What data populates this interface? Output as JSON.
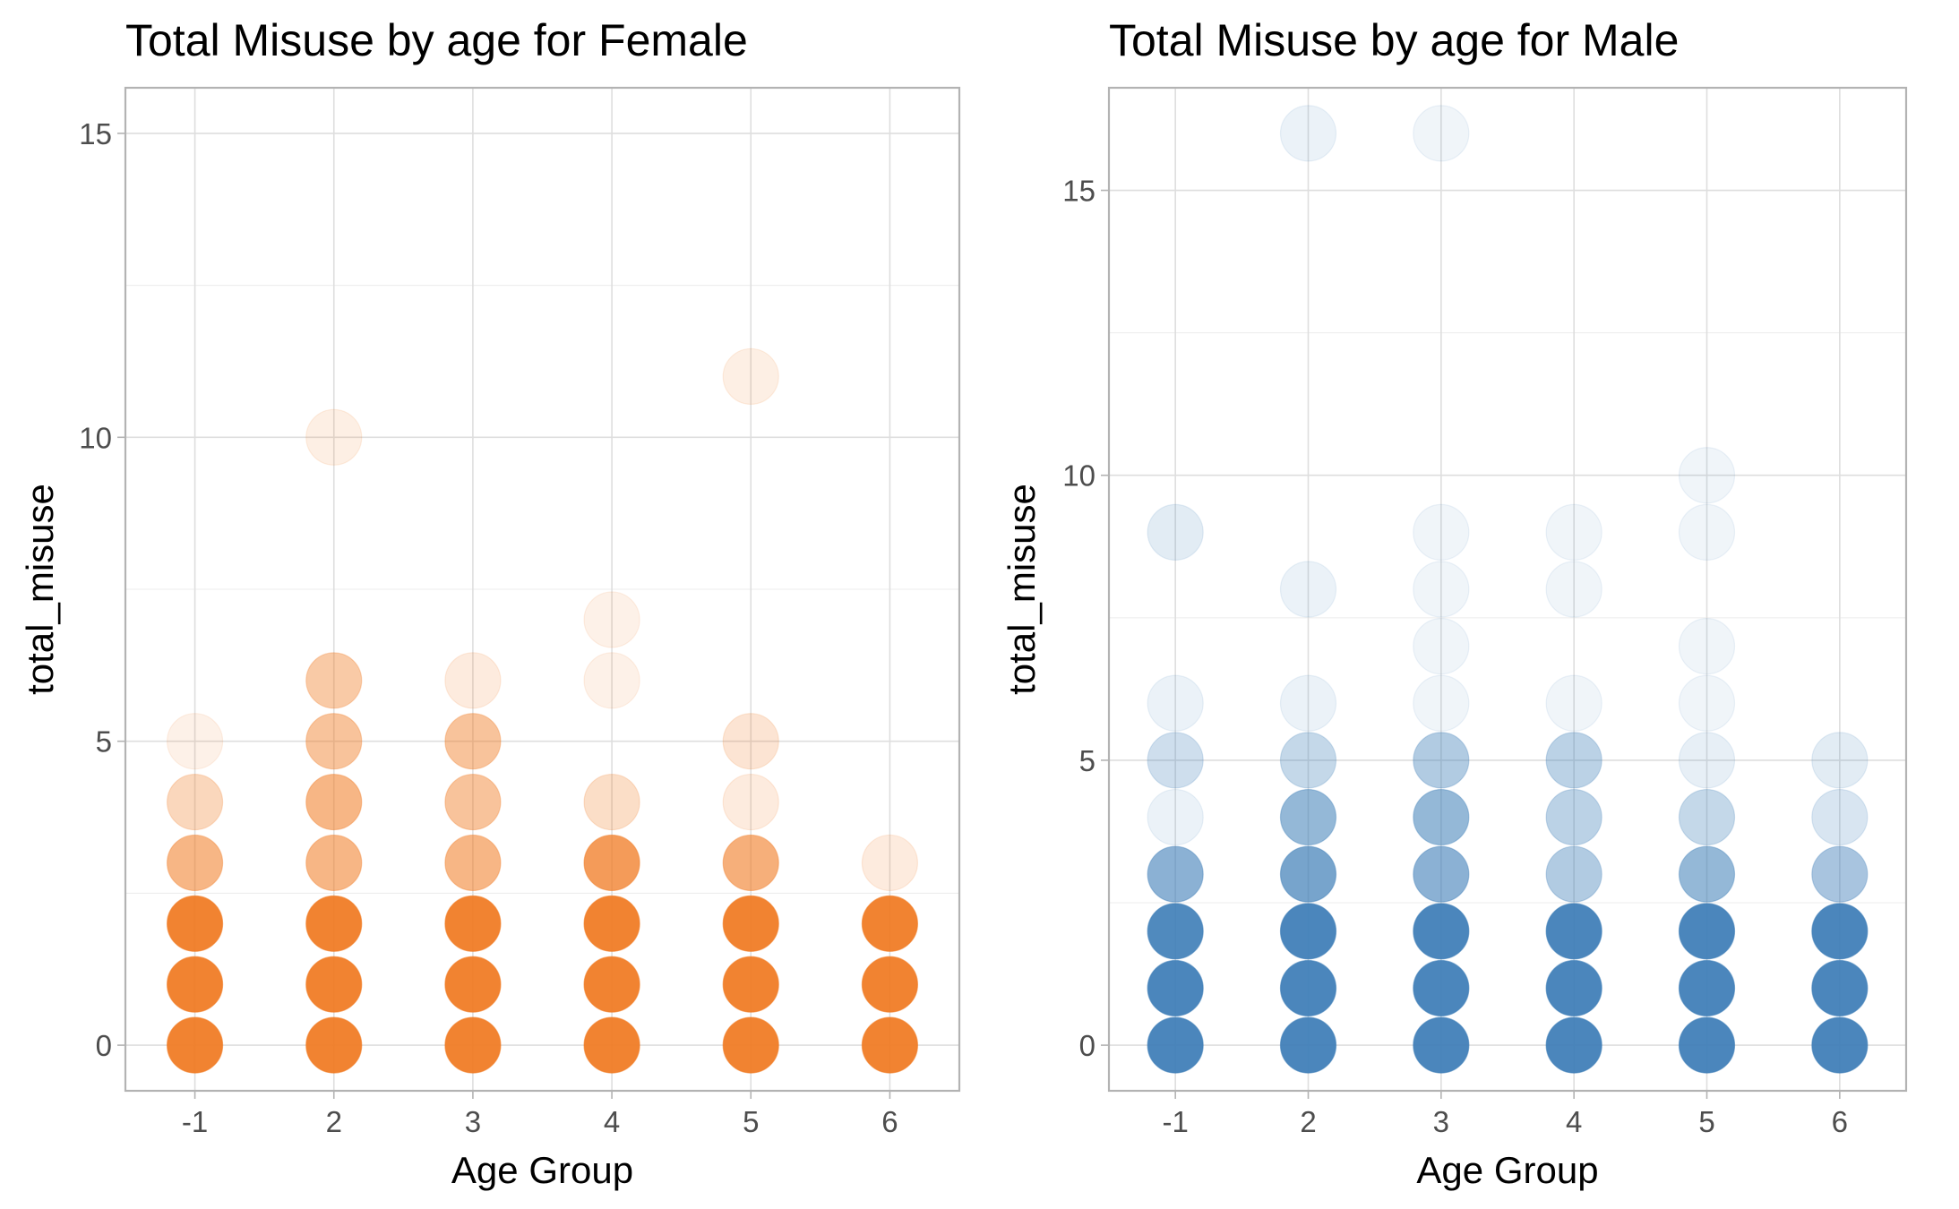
{
  "chart_data": [
    {
      "type": "scatter",
      "title": "Total Misuse by age for Female",
      "xlabel": "Age Group",
      "ylabel": "total_misuse",
      "categories": [
        "-1",
        "2",
        "3",
        "4",
        "5",
        "6"
      ],
      "yticks": [
        0,
        5,
        10,
        15
      ],
      "ylim": [
        -0.75,
        15.75
      ],
      "grid": true,
      "color": "#F07A21",
      "points": [
        {
          "x": "-1",
          "y": 0,
          "opacity": 0.93
        },
        {
          "x": "-1",
          "y": 1,
          "opacity": 0.93
        },
        {
          "x": "-1",
          "y": 2,
          "opacity": 0.93
        },
        {
          "x": "-1",
          "y": 3,
          "opacity": 0.55
        },
        {
          "x": "-1",
          "y": 4,
          "opacity": 0.3
        },
        {
          "x": "-1",
          "y": 5,
          "opacity": 0.1
        },
        {
          "x": "2",
          "y": 0,
          "opacity": 0.93
        },
        {
          "x": "2",
          "y": 1,
          "opacity": 0.93
        },
        {
          "x": "2",
          "y": 2,
          "opacity": 0.93
        },
        {
          "x": "2",
          "y": 3,
          "opacity": 0.55
        },
        {
          "x": "2",
          "y": 4,
          "opacity": 0.55
        },
        {
          "x": "2",
          "y": 5,
          "opacity": 0.45
        },
        {
          "x": "2",
          "y": 6,
          "opacity": 0.4
        },
        {
          "x": "2",
          "y": 10,
          "opacity": 0.12
        },
        {
          "x": "3",
          "y": 0,
          "opacity": 0.93
        },
        {
          "x": "3",
          "y": 1,
          "opacity": 0.93
        },
        {
          "x": "3",
          "y": 2,
          "opacity": 0.93
        },
        {
          "x": "3",
          "y": 3,
          "opacity": 0.55
        },
        {
          "x": "3",
          "y": 4,
          "opacity": 0.45
        },
        {
          "x": "3",
          "y": 5,
          "opacity": 0.45
        },
        {
          "x": "3",
          "y": 6,
          "opacity": 0.15
        },
        {
          "x": "4",
          "y": 0,
          "opacity": 0.93
        },
        {
          "x": "4",
          "y": 1,
          "opacity": 0.93
        },
        {
          "x": "4",
          "y": 2,
          "opacity": 0.93
        },
        {
          "x": "4",
          "y": 3,
          "opacity": 0.75
        },
        {
          "x": "4",
          "y": 4,
          "opacity": 0.25
        },
        {
          "x": "4",
          "y": 6,
          "opacity": 0.1
        },
        {
          "x": "4",
          "y": 7,
          "opacity": 0.1
        },
        {
          "x": "5",
          "y": 0,
          "opacity": 0.93
        },
        {
          "x": "5",
          "y": 1,
          "opacity": 0.93
        },
        {
          "x": "5",
          "y": 2,
          "opacity": 0.93
        },
        {
          "x": "5",
          "y": 3,
          "opacity": 0.6
        },
        {
          "x": "5",
          "y": 4,
          "opacity": 0.15
        },
        {
          "x": "5",
          "y": 5,
          "opacity": 0.2
        },
        {
          "x": "5",
          "y": 11,
          "opacity": 0.12
        },
        {
          "x": "6",
          "y": 0,
          "opacity": 0.93
        },
        {
          "x": "6",
          "y": 1,
          "opacity": 0.93
        },
        {
          "x": "6",
          "y": 2,
          "opacity": 0.93
        },
        {
          "x": "6",
          "y": 3,
          "opacity": 0.15
        }
      ]
    },
    {
      "type": "scatter",
      "title": "Total Misuse by age for Male",
      "xlabel": "Age Group",
      "ylabel": "total_misuse",
      "categories": [
        "-1",
        "2",
        "3",
        "4",
        "5",
        "6"
      ],
      "yticks": [
        0,
        5,
        10,
        15
      ],
      "ylim": [
        -0.8,
        16.8
      ],
      "grid": true,
      "color": "#3D7DB7",
      "points": [
        {
          "x": "-1",
          "y": 0,
          "opacity": 0.93
        },
        {
          "x": "-1",
          "y": 1,
          "opacity": 0.93
        },
        {
          "x": "-1",
          "y": 2,
          "opacity": 0.9
        },
        {
          "x": "-1",
          "y": 3,
          "opacity": 0.6
        },
        {
          "x": "-1",
          "y": 4,
          "opacity": 0.1
        },
        {
          "x": "-1",
          "y": 5,
          "opacity": 0.25
        },
        {
          "x": "-1",
          "y": 6,
          "opacity": 0.1
        },
        {
          "x": "-1",
          "y": 9,
          "opacity": 0.15
        },
        {
          "x": "2",
          "y": 0,
          "opacity": 0.93
        },
        {
          "x": "2",
          "y": 1,
          "opacity": 0.93
        },
        {
          "x": "2",
          "y": 2,
          "opacity": 0.93
        },
        {
          "x": "2",
          "y": 3,
          "opacity": 0.7
        },
        {
          "x": "2",
          "y": 4,
          "opacity": 0.55
        },
        {
          "x": "2",
          "y": 5,
          "opacity": 0.3
        },
        {
          "x": "2",
          "y": 6,
          "opacity": 0.1
        },
        {
          "x": "2",
          "y": 8,
          "opacity": 0.1
        },
        {
          "x": "2",
          "y": 16,
          "opacity": 0.1
        },
        {
          "x": "3",
          "y": 0,
          "opacity": 0.93
        },
        {
          "x": "3",
          "y": 1,
          "opacity": 0.93
        },
        {
          "x": "3",
          "y": 2,
          "opacity": 0.93
        },
        {
          "x": "3",
          "y": 3,
          "opacity": 0.6
        },
        {
          "x": "3",
          "y": 4,
          "opacity": 0.55
        },
        {
          "x": "3",
          "y": 5,
          "opacity": 0.4
        },
        {
          "x": "3",
          "y": 6,
          "opacity": 0.08
        },
        {
          "x": "3",
          "y": 7,
          "opacity": 0.08
        },
        {
          "x": "3",
          "y": 8,
          "opacity": 0.08
        },
        {
          "x": "3",
          "y": 9,
          "opacity": 0.08
        },
        {
          "x": "3",
          "y": 16,
          "opacity": 0.08
        },
        {
          "x": "4",
          "y": 0,
          "opacity": 0.93
        },
        {
          "x": "4",
          "y": 1,
          "opacity": 0.93
        },
        {
          "x": "4",
          "y": 2,
          "opacity": 0.93
        },
        {
          "x": "4",
          "y": 3,
          "opacity": 0.4
        },
        {
          "x": "4",
          "y": 4,
          "opacity": 0.35
        },
        {
          "x": "4",
          "y": 5,
          "opacity": 0.35
        },
        {
          "x": "4",
          "y": 6,
          "opacity": 0.08
        },
        {
          "x": "4",
          "y": 8,
          "opacity": 0.08
        },
        {
          "x": "4",
          "y": 9,
          "opacity": 0.08
        },
        {
          "x": "5",
          "y": 0,
          "opacity": 0.93
        },
        {
          "x": "5",
          "y": 1,
          "opacity": 0.93
        },
        {
          "x": "5",
          "y": 2,
          "opacity": 0.93
        },
        {
          "x": "5",
          "y": 3,
          "opacity": 0.55
        },
        {
          "x": "5",
          "y": 4,
          "opacity": 0.3
        },
        {
          "x": "5",
          "y": 5,
          "opacity": 0.12
        },
        {
          "x": "5",
          "y": 6,
          "opacity": 0.08
        },
        {
          "x": "5",
          "y": 7,
          "opacity": 0.08
        },
        {
          "x": "5",
          "y": 9,
          "opacity": 0.08
        },
        {
          "x": "5",
          "y": 10,
          "opacity": 0.08
        },
        {
          "x": "6",
          "y": 0,
          "opacity": 0.93
        },
        {
          "x": "6",
          "y": 1,
          "opacity": 0.93
        },
        {
          "x": "6",
          "y": 2,
          "opacity": 0.93
        },
        {
          "x": "6",
          "y": 3,
          "opacity": 0.45
        },
        {
          "x": "6",
          "y": 4,
          "opacity": 0.2
        },
        {
          "x": "6",
          "y": 5,
          "opacity": 0.15
        }
      ]
    }
  ]
}
